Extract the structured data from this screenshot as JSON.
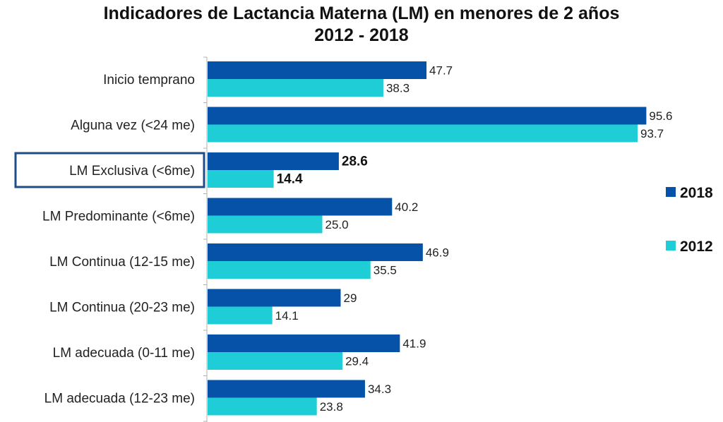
{
  "chart_data": {
    "type": "bar",
    "orientation": "horizontal",
    "title": "Indicadores de Lactancia Materna (LM) en menores de 2 años",
    "subtitle": "2012 - 2018",
    "xlabel": "",
    "ylabel": "",
    "xlim": [
      0,
      100
    ],
    "grid": false,
    "legend_position": "right",
    "categories": [
      "Inicio temprano",
      "Alguna vez (<24 me)",
      "LM Exclusiva  (<6me)",
      "LM Predominante (<6me)",
      "LM Continua (12-15 me)",
      "LM Continua (20-23 me)",
      "LM adecuada (0-11 me)",
      "LM adecuada (12-23 me)"
    ],
    "highlighted_category_index": 2,
    "series": [
      {
        "name": "2018",
        "color": "#0652A8",
        "values": [
          47.7,
          95.6,
          28.6,
          40.2,
          46.9,
          29,
          41.9,
          34.3
        ],
        "labels": [
          "47.7",
          "95.6",
          "28.6",
          "40.2",
          "46.9",
          "29",
          "41.9",
          "34.3"
        ]
      },
      {
        "name": "2012",
        "color": "#1FCDD6",
        "values": [
          38.3,
          93.7,
          14.4,
          25.0,
          35.5,
          14.1,
          29.4,
          23.8
        ],
        "labels": [
          "38.3",
          "93.7",
          "14.4",
          "25.0",
          "35.5",
          "14.1",
          "29.4",
          "23.8"
        ]
      }
    ],
    "highlight_color": "#1D4E89"
  }
}
